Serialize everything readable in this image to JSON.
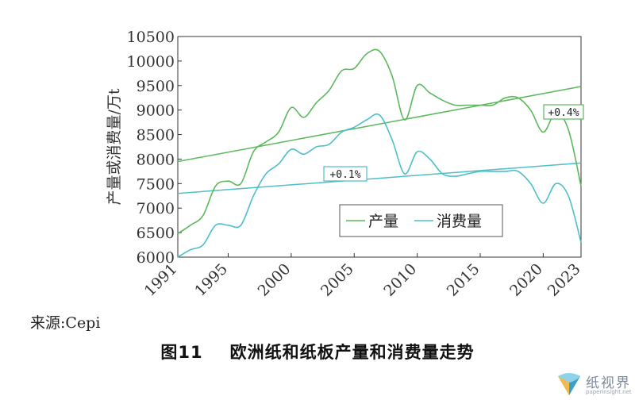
{
  "chart_data": {
    "type": "line",
    "ylabel": "产量或消费量/万t",
    "xlabel": "",
    "xlim": [
      1991,
      2023
    ],
    "ylim": [
      6000,
      10500
    ],
    "xticks": [
      1991,
      1995,
      2000,
      2005,
      2010,
      2015,
      2020,
      2023
    ],
    "yticks": [
      6000,
      6500,
      7000,
      7500,
      8000,
      8500,
      9000,
      9500,
      10000,
      10500
    ],
    "grid": false,
    "legend_position": "center-right",
    "series": [
      {
        "name": "产量",
        "color": "#5cb85c",
        "x": [
          1991,
          1992,
          1993,
          1994,
          1995,
          1996,
          1997,
          1998,
          1999,
          2000,
          2001,
          2002,
          2003,
          2004,
          2005,
          2006,
          2007,
          2008,
          2009,
          2010,
          2011,
          2012,
          2013,
          2014,
          2015,
          2016,
          2017,
          2018,
          2019,
          2020,
          2021,
          2022,
          2023
        ],
        "values": [
          6480,
          6650,
          6850,
          7450,
          7550,
          7500,
          8150,
          8350,
          8550,
          9050,
          8850,
          9150,
          9400,
          9800,
          9850,
          10150,
          10200,
          9700,
          8800,
          9500,
          9350,
          9200,
          9100,
          9100,
          9100,
          9100,
          9250,
          9250,
          9000,
          8550,
          8950,
          8600,
          7450
        ],
        "trend": {
          "start": 7950,
          "end": 9480,
          "label": "+0.4%"
        }
      },
      {
        "name": "消费量",
        "color": "#4dbfc9",
        "x": [
          1991,
          1992,
          1993,
          1994,
          1995,
          1996,
          1997,
          1998,
          1999,
          2000,
          2001,
          2002,
          2003,
          2004,
          2005,
          2006,
          2007,
          2008,
          2009,
          2010,
          2011,
          2012,
          2013,
          2014,
          2015,
          2016,
          2017,
          2018,
          2019,
          2020,
          2021,
          2022,
          2023
        ],
        "values": [
          6000,
          6150,
          6250,
          6650,
          6650,
          6650,
          7250,
          7700,
          7900,
          8200,
          8100,
          8250,
          8300,
          8550,
          8650,
          8800,
          8900,
          8400,
          7700,
          8150,
          8000,
          7700,
          7650,
          7700,
          7750,
          7750,
          7750,
          7750,
          7500,
          7100,
          7500,
          7250,
          6300
        ],
        "trend": {
          "start": 7300,
          "end": 7920,
          "label": "+0.1%"
        }
      }
    ]
  },
  "source": "来源:Cepi",
  "caption": {
    "number": "图11",
    "title": "欧洲纸和纸板产量和消费量走势"
  },
  "watermark": {
    "text": "纸视界",
    "url": "paperinsight.net"
  }
}
